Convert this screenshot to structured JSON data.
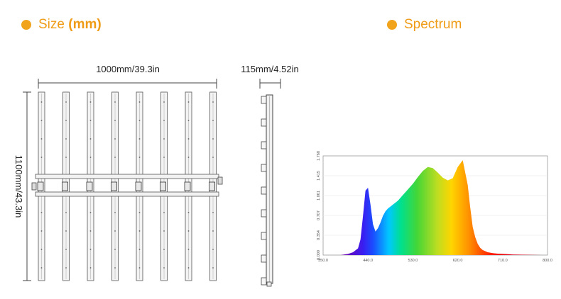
{
  "size_section": {
    "heading_prefix": "Size ",
    "heading_emphasis": "(mm)",
    "width_label": "1000mm/39.3in",
    "depth_label": "115mm/4.52in",
    "height_label": "1100mm/43.3in"
  },
  "spectrum_section": {
    "heading": "Spectrum"
  },
  "accent_color": "#f1a31b",
  "chart_data": {
    "type": "area",
    "title": "",
    "xlabel": "",
    "ylabel": "",
    "xlim": [
      350,
      800
    ],
    "ylim": [
      0,
      1.768
    ],
    "x_ticks": [
      "350.0",
      "440.0",
      "530.0",
      "620.0",
      "710.0",
      "800.0"
    ],
    "y_ticks": [
      "0.000",
      "0.354",
      "0.707",
      "1.061",
      "1.415",
      "1.768"
    ],
    "series": [
      {
        "x": [
          385,
          400,
          410,
          420,
          425,
          430,
          435,
          440,
          445,
          450,
          455,
          460,
          465,
          470,
          475,
          480,
          490,
          500,
          510,
          520,
          530,
          540,
          550,
          560,
          570,
          580,
          590,
          600,
          610,
          620,
          630,
          640,
          645,
          650,
          655,
          660,
          665,
          670,
          680,
          690,
          700,
          710,
          720,
          730,
          750,
          770,
          790
        ],
        "y": [
          0,
          0.02,
          0.05,
          0.12,
          0.28,
          0.7,
          1.15,
          1.2,
          0.9,
          0.55,
          0.42,
          0.48,
          0.58,
          0.7,
          0.78,
          0.83,
          0.9,
          0.97,
          1.07,
          1.17,
          1.27,
          1.39,
          1.5,
          1.57,
          1.55,
          1.47,
          1.38,
          1.33,
          1.37,
          1.57,
          1.69,
          1.25,
          0.85,
          0.5,
          0.32,
          0.2,
          0.13,
          0.09,
          0.05,
          0.035,
          0.025,
          0.02,
          0.015,
          0.01,
          0.006,
          0.003,
          0
        ]
      }
    ]
  }
}
